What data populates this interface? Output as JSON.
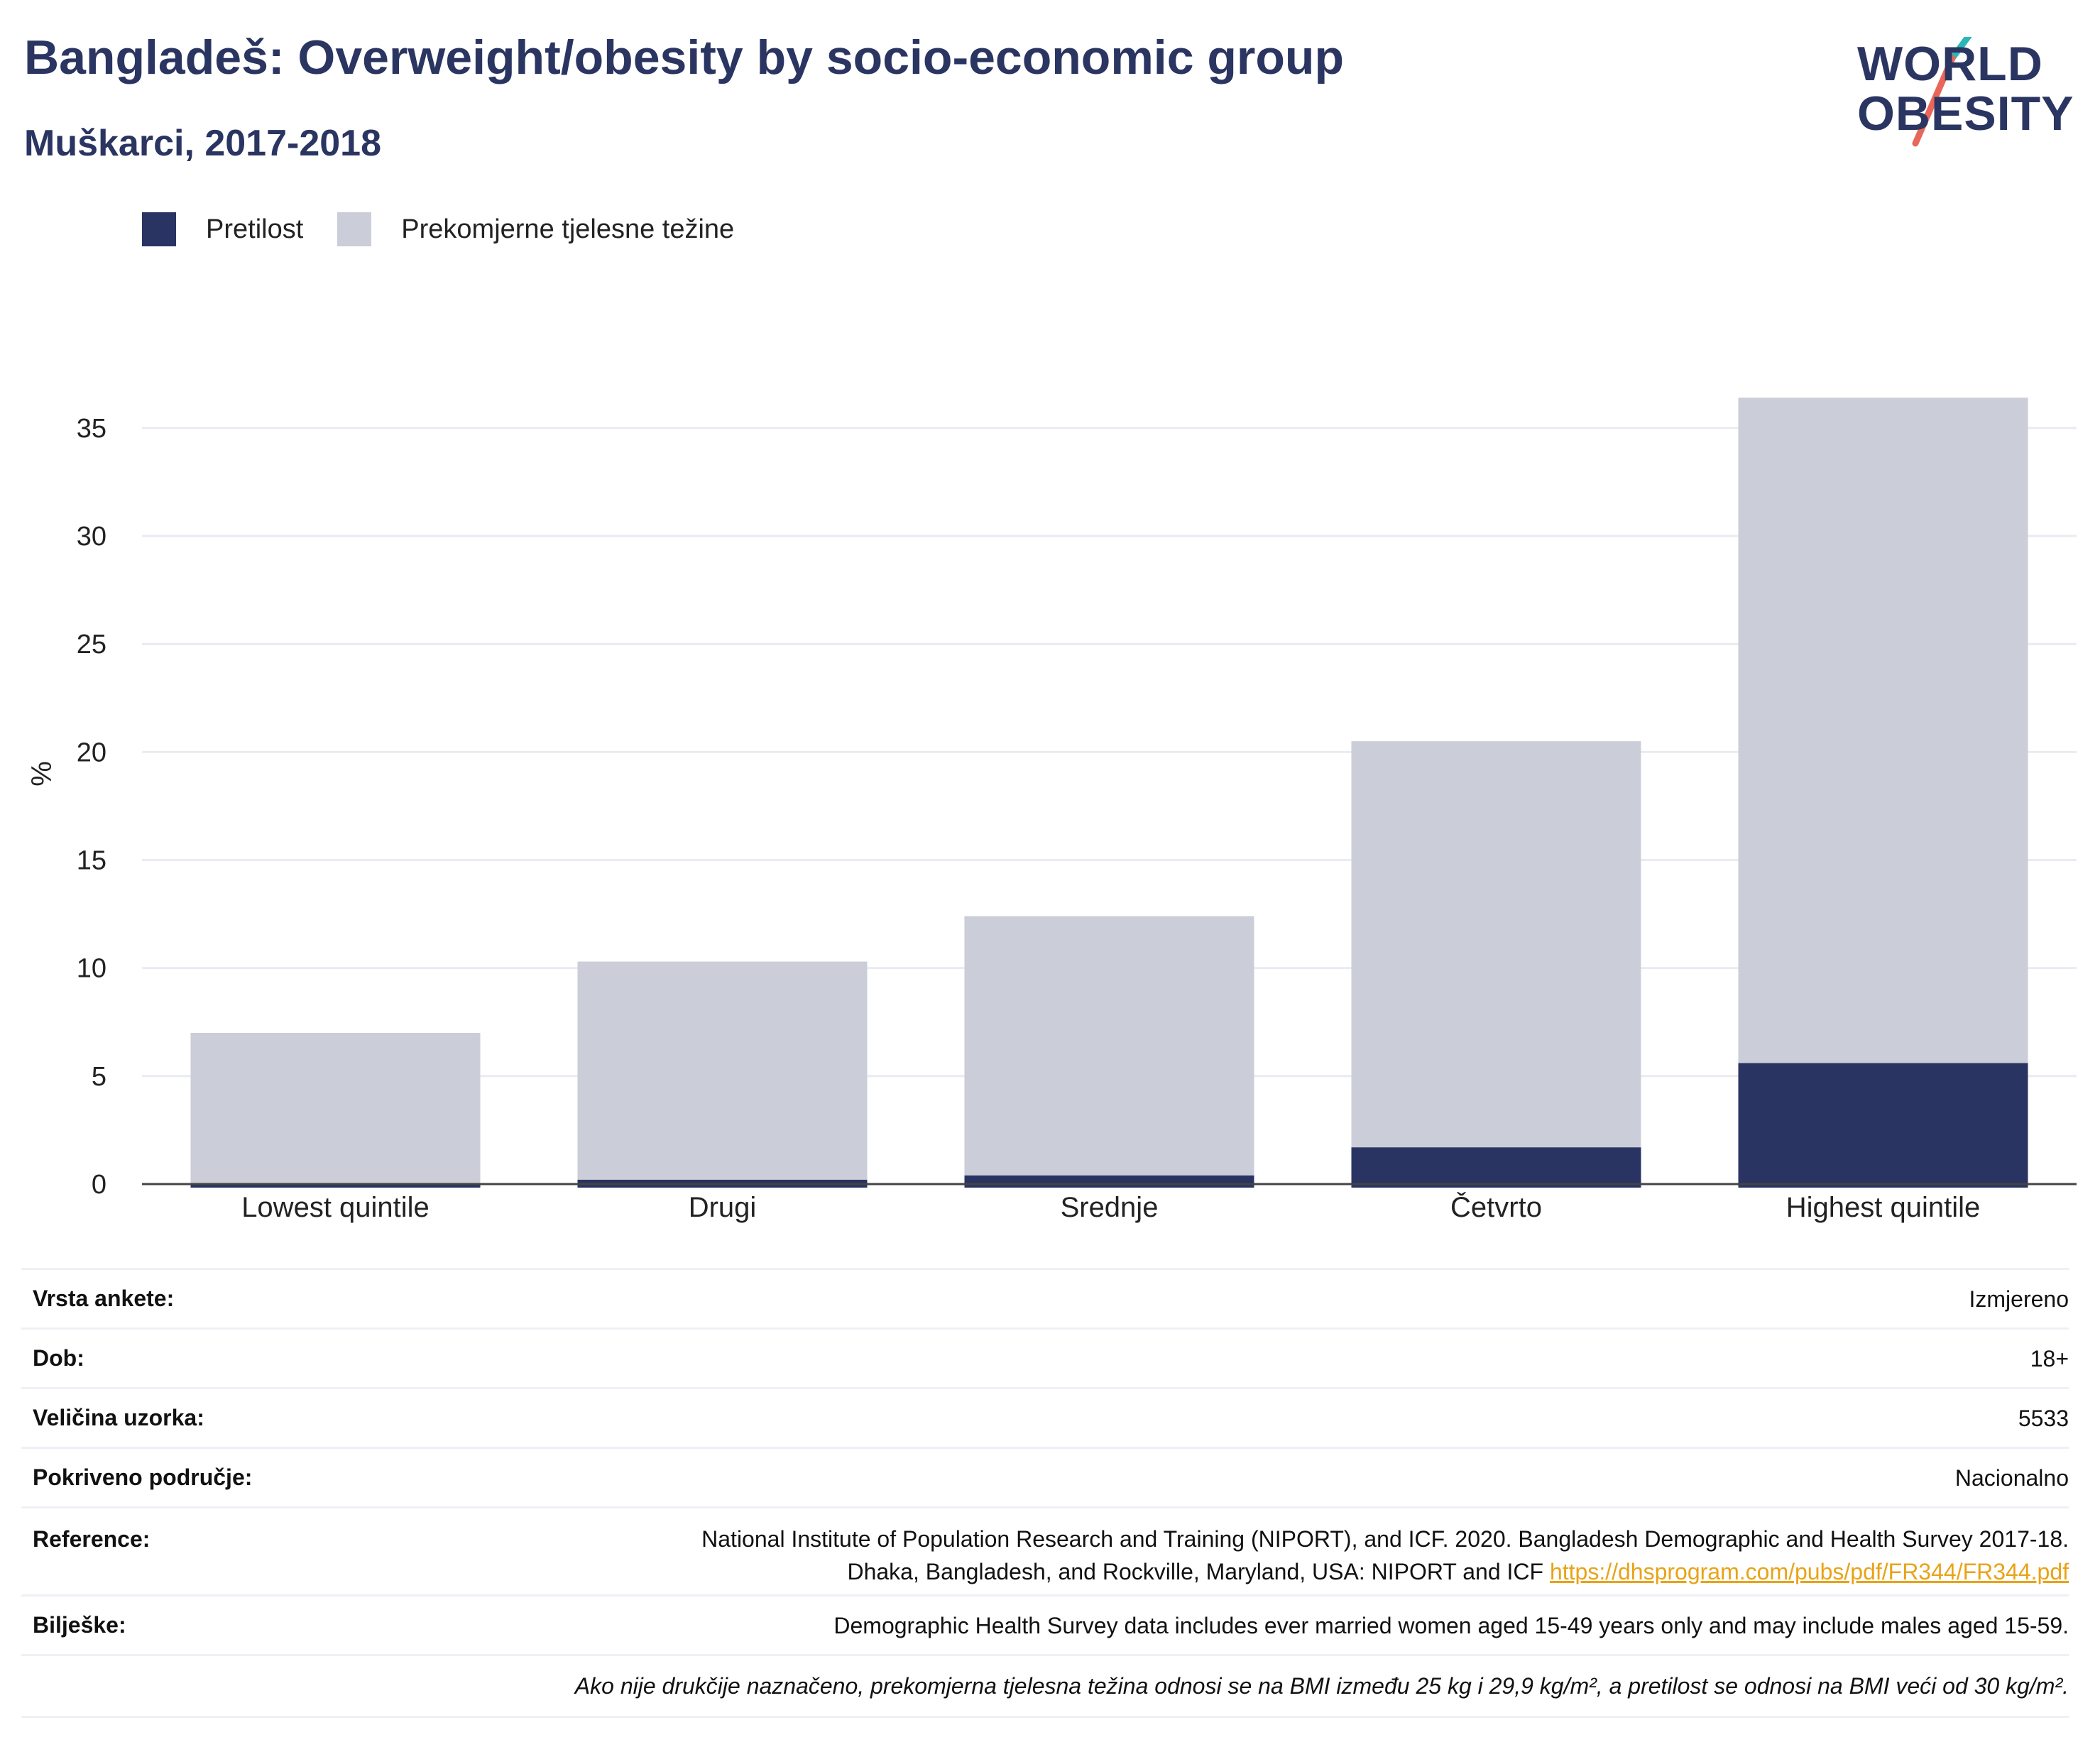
{
  "title": "Bangladeš: Overweight/obesity by socio-economic group",
  "subtitle": "Muškarci, 2017-2018",
  "logo": {
    "line1": "WORLD",
    "line2": "OBESITY"
  },
  "colors": {
    "obesity": "#293462",
    "overweight": "#cbcdd8",
    "accent_teal": "#2ab7b7",
    "accent_red": "#e8675a",
    "link": "#e8a317"
  },
  "legend": [
    {
      "label": "Pretilost",
      "color": "#293462"
    },
    {
      "label": "Prekomjerne tjelesne težine",
      "color": "#cbcdd8"
    }
  ],
  "chart_data": {
    "type": "bar",
    "stacked": true,
    "categories": [
      "Lowest quintile",
      "Drugi",
      "Srednje",
      "Četvrto",
      "Highest quintile"
    ],
    "series": [
      {
        "name": "Pretilost",
        "values": [
          0.0,
          0.2,
          0.4,
          1.7,
          5.6
        ]
      },
      {
        "name": "Prekomjerne tjelesne težine",
        "values": [
          7.0,
          10.1,
          12.0,
          18.8,
          30.8
        ]
      }
    ],
    "totals": [
      7.0,
      10.3,
      12.4,
      20.5,
      36.4
    ],
    "ylabel": "%",
    "ylim": [
      0,
      37
    ],
    "yticks": [
      0,
      5,
      10,
      15,
      20,
      25,
      30,
      35
    ],
    "grid": true,
    "legend_position": "top-left"
  },
  "info": {
    "survey_type": {
      "label": "Vrsta ankete:",
      "value": "Izmjereno"
    },
    "age": {
      "label": "Dob:",
      "value": "18+"
    },
    "sample_size": {
      "label": "Veličina uzorka:",
      "value": "5533"
    },
    "coverage": {
      "label": "Pokriveno područje:",
      "value": "Nacionalno"
    },
    "reference": {
      "label": "Reference:",
      "line1": "National Institute of Population Research and Training (NIPORT), and ICF. 2020. Bangladesh Demographic and Health Survey 2017-18.",
      "line2": "Dhaka, Bangladesh, and Rockville, Maryland, USA: NIPORT and ICF",
      "link": "https://dhsprogram.com/pubs/pdf/FR344/FR344.pdf"
    },
    "notes": {
      "label": "Bilješke:",
      "value": "Demographic Health Survey data includes ever married women aged 15-49 years only and may include males aged 15-59."
    },
    "footnote": "Ako nije drukčije naznačeno, prekomjerna tjelesna težina odnosi se na BMI između 25 kg i 29,9 kg/m², a pretilost se odnosi na BMI veći od 30 kg/m²."
  }
}
